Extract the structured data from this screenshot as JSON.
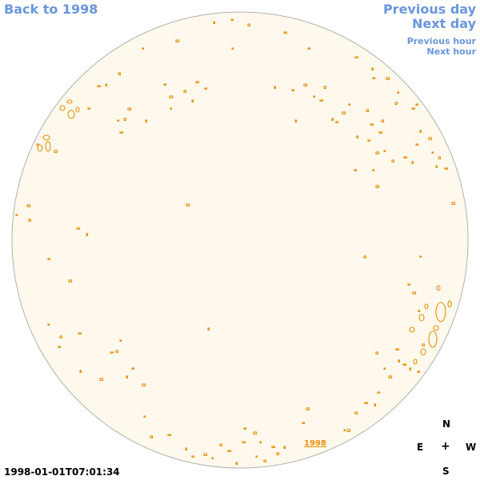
{
  "nav": {
    "back_label": "Back to 1998",
    "prev_day_label": "Previous day",
    "next_day_label": "Next day",
    "prev_hour_label": "Previous hour",
    "next_hour_label": "Next hour"
  },
  "sun": {
    "disk_color": "#fef9ec",
    "limb_color": "#b0b0b0",
    "feature_color": "#e8900a",
    "year_label": "1998"
  },
  "compass": {
    "north": "N",
    "east": "E",
    "center": "+",
    "west": "W",
    "south": "S"
  },
  "timestamp": "1998-01-01T07:01:34"
}
